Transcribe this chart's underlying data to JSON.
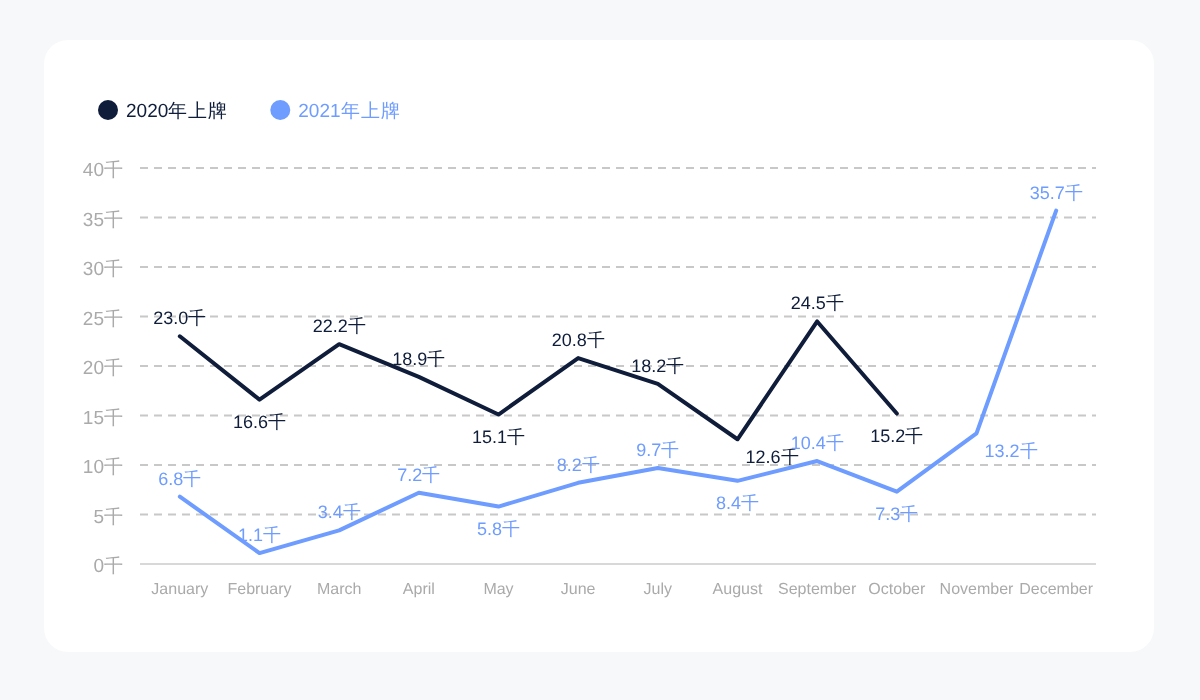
{
  "chart_data": {
    "type": "line",
    "categories": [
      "January",
      "February",
      "March",
      "April",
      "May",
      "June",
      "July",
      "August",
      "September",
      "October",
      "November",
      "December"
    ],
    "series": [
      {
        "name": "2020年上牌",
        "color": "#0f1d3a",
        "values": [
          23.0,
          16.6,
          22.2,
          18.9,
          15.1,
          20.8,
          18.2,
          12.6,
          24.5,
          15.2,
          null,
          null
        ],
        "value_labels": [
          "23.0千",
          "16.6千",
          "22.2千",
          "18.9千",
          "15.1千",
          "20.8千",
          "18.2千",
          "12.6千",
          "24.5千",
          "15.2千",
          null,
          null
        ]
      },
      {
        "name": "2021年上牌",
        "color": "#6e9cff",
        "values": [
          6.8,
          1.1,
          3.4,
          7.2,
          5.8,
          8.2,
          9.7,
          8.4,
          10.4,
          7.3,
          13.2,
          35.7
        ],
        "value_labels": [
          "6.8千",
          "1.1千",
          "3.4千",
          "7.2千",
          "5.8千",
          "8.2千",
          "9.7千",
          "8.4千",
          "10.4千",
          "7.3千",
          "13.2千",
          "35.7千"
        ]
      }
    ],
    "ylim": [
      0,
      40
    ],
    "yticks": [
      {
        "value": 0,
        "label": "0千"
      },
      {
        "value": 5,
        "label": "5千"
      },
      {
        "value": 10,
        "label": "10千"
      },
      {
        "value": 15,
        "label": "15千"
      },
      {
        "value": 20,
        "label": "20千"
      },
      {
        "value": 25,
        "label": "25千"
      },
      {
        "value": 30,
        "label": "30千"
      },
      {
        "value": 35,
        "label": "35千"
      },
      {
        "value": 40,
        "label": "40千"
      }
    ],
    "grid": "y",
    "legend": "top left",
    "marker": "none",
    "line_style": "solid"
  }
}
